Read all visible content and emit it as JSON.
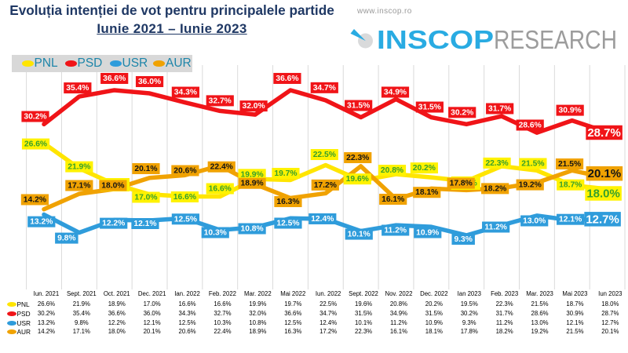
{
  "header": {
    "title": "Evoluția intenției de vot pentru principalele partide",
    "subtitle": "Iunie 2021 – Iunie 2023",
    "title_color": "#1F3864"
  },
  "brand": {
    "website": "www.inscop.ro",
    "logo_primary": "INSCOP",
    "logo_secondary": "RESEARCH",
    "logo_primary_color": "#29ABE2",
    "logo_secondary_color": "#9C9C9C",
    "logo_icon": "inscop-compass-dot-icon"
  },
  "colors": {
    "grid": "#DADADA",
    "legend_bg": "#D8D8D8",
    "legend_text": "#1D85A9",
    "table_text": "#000000"
  },
  "chart_data": {
    "type": "line",
    "title": "Evoluția intenției de vot pentru principalele partide",
    "subtitle": "Iunie 2021 – Iunie 2023",
    "categories": [
      "Iun. 2021",
      "Sept. 2021",
      "Oct. 2021",
      "Dec. 2021",
      "Ian. 2022",
      "Feb. 2022",
      "Mar. 2022",
      "Mai 2022",
      "Iun. 2022",
      "Sept. 2022",
      "Nov. 2022",
      "Dec. 2022",
      "Ian 2023",
      "Feb. 2023",
      "Mar. 2023",
      "Mai 2023",
      "Iun 2023"
    ],
    "series": [
      {
        "name": "PNL",
        "line_color": "#FFE500",
        "label_bg": "#FFF200",
        "label_text_color": "#35A02C",
        "values": [
          26.6,
          21.9,
          18.9,
          17.0,
          16.6,
          16.6,
          19.9,
          19.7,
          22.5,
          19.6,
          20.8,
          20.2,
          19.5,
          22.3,
          21.5,
          18.7,
          18.0
        ]
      },
      {
        "name": "PSD",
        "line_color": "#F01418",
        "label_bg": "#F01418",
        "label_text_color": "#FFFFFF",
        "values": [
          30.2,
          35.4,
          36.6,
          36.0,
          34.3,
          32.7,
          32.0,
          36.6,
          34.7,
          31.5,
          34.9,
          31.5,
          30.2,
          31.7,
          28.6,
          30.9,
          28.7
        ]
      },
      {
        "name": "USR",
        "line_color": "#2F9CDB",
        "label_bg": "#2F9CDB",
        "label_text_color": "#FFFFFF",
        "values": [
          13.2,
          9.8,
          12.2,
          12.1,
          12.5,
          10.3,
          10.8,
          12.5,
          12.4,
          10.1,
          11.2,
          10.9,
          9.3,
          11.2,
          13.0,
          12.1,
          12.7
        ]
      },
      {
        "name": "AUR",
        "line_color": "#F0A202",
        "label_bg": "#F0A202",
        "label_text_color": "#141414",
        "values": [
          14.2,
          17.1,
          18.0,
          20.1,
          20.6,
          22.4,
          18.9,
          16.3,
          17.2,
          22.3,
          16.1,
          18.1,
          17.8,
          18.2,
          19.2,
          21.5,
          20.1
        ]
      }
    ],
    "value_suffix": "%",
    "ylim": [
      0,
      41
    ],
    "grid": "vertical-only",
    "legend_position": "top-left",
    "data_labels": "all-points",
    "last_point_emphasis": true
  }
}
